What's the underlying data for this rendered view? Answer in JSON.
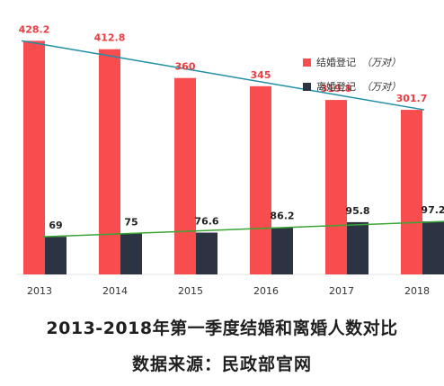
{
  "chart_data": {
    "type": "bar",
    "categories": [
      "2013",
      "2014",
      "2015",
      "2016",
      "2017",
      "2018"
    ],
    "series": [
      {
        "name": "结婚登记",
        "unit": "（万对）",
        "color": "#f84d4f",
        "label_color": "#ef3b3f",
        "values": [
          428.2,
          412.8,
          360,
          345,
          319.8,
          301.7
        ]
      },
      {
        "name": "离婚登记",
        "unit": "（万对）",
        "color": "#2c3444",
        "label_color": "#222222",
        "values": [
          69,
          75,
          76.6,
          86.2,
          95.8,
          97.2
        ]
      }
    ],
    "value_labels": [
      [
        "428.2",
        "412.8",
        "360",
        "345",
        "319.8",
        "301.7"
      ],
      [
        "69",
        "75",
        "76.6",
        "86.2",
        "95.8",
        "97.2"
      ]
    ],
    "trend_colors": [
      "#1f8fa4",
      "#3aa535"
    ],
    "ylim": [
      0,
      470
    ],
    "grid": false,
    "legend_position": "top-right"
  },
  "caption": {
    "title": "2013-2018年第一季度结婚和离婚人数对比",
    "source": "数据来源：民政部官网"
  }
}
